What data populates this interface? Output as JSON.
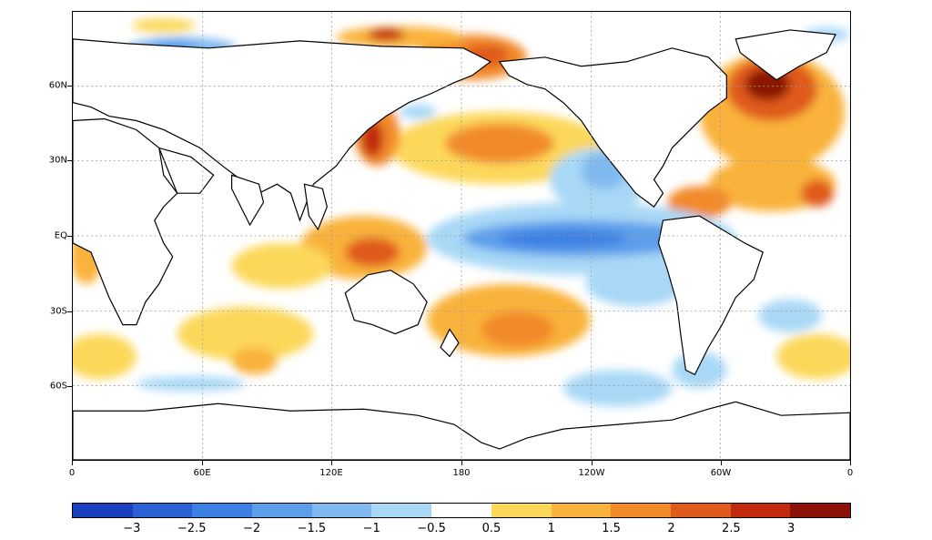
{
  "map": {
    "lat_labels": [
      "60N",
      "30N",
      "EQ",
      "30S",
      "60S"
    ],
    "lon_labels": [
      "0",
      "60E",
      "120E",
      "180",
      "120W",
      "60W",
      "0"
    ]
  },
  "colorbar": {
    "labels": [
      "-3",
      "-2.5",
      "-2",
      "-1.5",
      "-1",
      "-0.5",
      "0.5",
      "1",
      "1.5",
      "2",
      "2.5",
      "3"
    ],
    "colors": [
      "#1a3fbf",
      "#2a62d6",
      "#3d80e3",
      "#5d9eeb",
      "#80b9f0",
      "#a8d8f6",
      "#ffffff",
      "#fcd85a",
      "#f9b23a",
      "#f28a2a",
      "#e05a1c",
      "#c22a10",
      "#8a1206"
    ]
  },
  "anomaly_palette": {
    "light_orange": "#fcd85a",
    "orange": "#f9b23a",
    "dark_orange": "#f28a2a",
    "red": "#e05a1c",
    "dark_red": "#a81808",
    "light_blue": "#a8d8f6",
    "blue": "#80b9f0",
    "mid_blue": "#5d9eeb",
    "deep_blue": "#3d80e3"
  }
}
